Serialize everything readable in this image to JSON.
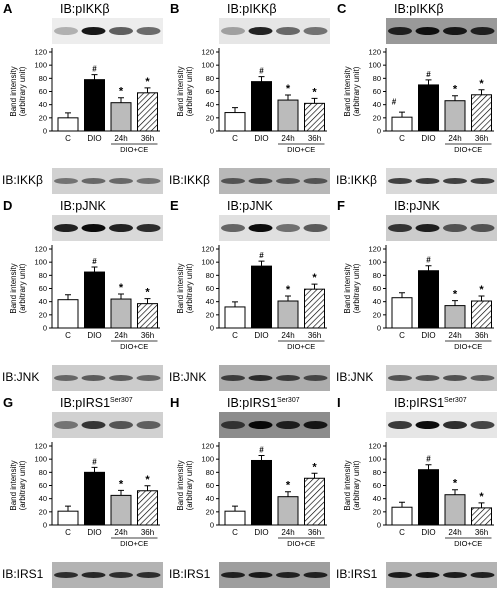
{
  "figure": {
    "group_label": "DIO+CE",
    "y_axis_label_line1": "Band intensity",
    "y_axis_label_line2": "(arbitrary unit)"
  },
  "chart_data": [
    {
      "type": "bar",
      "panel": "A",
      "title": "IB:pIKKβ",
      "superscript": "",
      "bottom_label": "IB:IKKβ",
      "categories": [
        "C",
        "DIO",
        "24h",
        "36h"
      ],
      "values": [
        20,
        78,
        43,
        58
      ],
      "ylim": [
        0,
        120
      ],
      "yticks": [
        0,
        20,
        40,
        60,
        80,
        100,
        120
      ],
      "markers": [
        "",
        "#",
        "*",
        "*"
      ],
      "blot_dark": [
        0.25,
        0.9,
        0.6,
        0.55
      ],
      "blot_bottom_dark": [
        0.45,
        0.5,
        0.5,
        0.45
      ],
      "blot_top_bg": 0.93,
      "blot_bottom_bg": 0.82
    },
    {
      "type": "bar",
      "panel": "B",
      "title": "IB:pIKKβ",
      "superscript": "",
      "bottom_label": "IB:IKKβ",
      "categories": [
        "C",
        "DIO",
        "24h",
        "36h"
      ],
      "values": [
        28,
        75,
        47,
        42
      ],
      "ylim": [
        0,
        120
      ],
      "yticks": [
        0,
        20,
        40,
        60,
        80,
        100,
        120
      ],
      "markers": [
        "",
        "#",
        "*",
        "*"
      ],
      "blot_dark": [
        0.3,
        0.85,
        0.55,
        0.5
      ],
      "blot_bottom_dark": [
        0.55,
        0.6,
        0.55,
        0.55
      ],
      "blot_top_bg": 0.9,
      "blot_bottom_bg": 0.72
    },
    {
      "type": "bar",
      "panel": "C",
      "title": "IB:pIKKβ",
      "superscript": "",
      "bottom_label": "IB:IKKβ",
      "categories": [
        "C",
        "DIO",
        "24h",
        "36h"
      ],
      "values": [
        21,
        70,
        46,
        55
      ],
      "ylim": [
        0,
        120
      ],
      "yticks": [
        0,
        20,
        40,
        60,
        80,
        100,
        120
      ],
      "markers": [
        "#",
        "#",
        "*",
        "*"
      ],
      "blot_dark": [
        0.8,
        0.9,
        0.85,
        0.8
      ],
      "blot_bottom_dark": [
        0.7,
        0.72,
        0.7,
        0.7
      ],
      "blot_top_bg": 0.6,
      "blot_bottom_bg": 0.85
    },
    {
      "type": "bar",
      "panel": "D",
      "title": "IB:pJNK",
      "superscript": "",
      "bottom_label": "IB:JNK",
      "categories": [
        "C",
        "DIO",
        "24h",
        "36h"
      ],
      "values": [
        43,
        85,
        44,
        37
      ],
      "ylim": [
        0,
        120
      ],
      "yticks": [
        0,
        20,
        40,
        60,
        80,
        100,
        120
      ],
      "markers": [
        "",
        "#",
        "*",
        "*"
      ],
      "blot_dark": [
        0.85,
        0.95,
        0.85,
        0.8
      ],
      "blot_bottom_dark": [
        0.5,
        0.55,
        0.55,
        0.5
      ],
      "blot_top_bg": 0.85,
      "blot_bottom_bg": 0.8
    },
    {
      "type": "bar",
      "panel": "E",
      "title": "IB:pJNK",
      "superscript": "",
      "bottom_label": "IB:JNK",
      "categories": [
        "C",
        "DIO",
        "24h",
        "36h"
      ],
      "values": [
        32,
        94,
        41,
        59
      ],
      "ylim": [
        0,
        120
      ],
      "yticks": [
        0,
        20,
        40,
        60,
        80,
        100,
        120
      ],
      "markers": [
        "",
        "#",
        "*",
        "*"
      ],
      "blot_dark": [
        0.55,
        0.95,
        0.5,
        0.6
      ],
      "blot_bottom_dark": [
        0.65,
        0.75,
        0.65,
        0.6
      ],
      "blot_top_bg": 0.88,
      "blot_bottom_bg": 0.68
    },
    {
      "type": "bar",
      "panel": "F",
      "title": "IB:pJNK",
      "superscript": "",
      "bottom_label": "IB:JNK",
      "categories": [
        "C",
        "DIO",
        "24h",
        "36h"
      ],
      "values": [
        46,
        87,
        34,
        41
      ],
      "ylim": [
        0,
        120
      ],
      "yticks": [
        0,
        20,
        40,
        60,
        80,
        100,
        120
      ],
      "markers": [
        "",
        "#",
        "*",
        "*"
      ],
      "blot_dark": [
        0.75,
        0.85,
        0.6,
        0.6
      ],
      "blot_bottom_dark": [
        0.6,
        0.6,
        0.6,
        0.55
      ],
      "blot_top_bg": 0.8,
      "blot_bottom_bg": 0.8
    },
    {
      "type": "bar",
      "panel": "G",
      "title": "IB:pIRS1",
      "superscript": "Ser307",
      "bottom_label": "IB:IRS1",
      "categories": [
        "C",
        "DIO",
        "24h",
        "36h"
      ],
      "values": [
        21,
        80,
        45,
        52
      ],
      "ylim": [
        0,
        120
      ],
      "yticks": [
        0,
        20,
        40,
        60,
        80,
        100,
        120
      ],
      "markers": [
        "",
        "#",
        "*",
        "*"
      ],
      "blot_dark": [
        0.45,
        0.75,
        0.6,
        0.55
      ],
      "blot_bottom_dark": [
        0.75,
        0.78,
        0.75,
        0.75
      ],
      "blot_top_bg": 0.82,
      "blot_bottom_bg": 0.7
    },
    {
      "type": "bar",
      "panel": "H",
      "title": "IB:pIRS1",
      "superscript": "Ser307",
      "bottom_label": "IB:IRS1",
      "categories": [
        "C",
        "DIO",
        "24h",
        "36h"
      ],
      "values": [
        21,
        98,
        43,
        71
      ],
      "ylim": [
        0,
        120
      ],
      "yticks": [
        0,
        20,
        40,
        60,
        80,
        100,
        120
      ],
      "markers": [
        "",
        "#",
        "*",
        "*"
      ],
      "blot_dark": [
        0.65,
        0.95,
        0.8,
        0.85
      ],
      "blot_bottom_dark": [
        0.8,
        0.85,
        0.8,
        0.8
      ],
      "blot_top_bg": 0.55,
      "blot_bottom_bg": 0.62
    },
    {
      "type": "bar",
      "panel": "I",
      "title": "IB:pIRS1",
      "superscript": "Ser307",
      "bottom_label": "IB:IRS1",
      "categories": [
        "C",
        "DIO",
        "24h",
        "36h"
      ],
      "values": [
        27,
        84,
        46,
        26
      ],
      "ylim": [
        0,
        120
      ],
      "yticks": [
        0,
        20,
        40,
        60,
        80,
        100,
        120
      ],
      "markers": [
        "",
        "#",
        "*",
        "*"
      ],
      "blot_dark": [
        0.75,
        0.95,
        0.8,
        0.7
      ],
      "blot_bottom_dark": [
        0.85,
        0.88,
        0.85,
        0.82
      ],
      "blot_top_bg": 0.9,
      "blot_bottom_bg": 0.7
    }
  ]
}
